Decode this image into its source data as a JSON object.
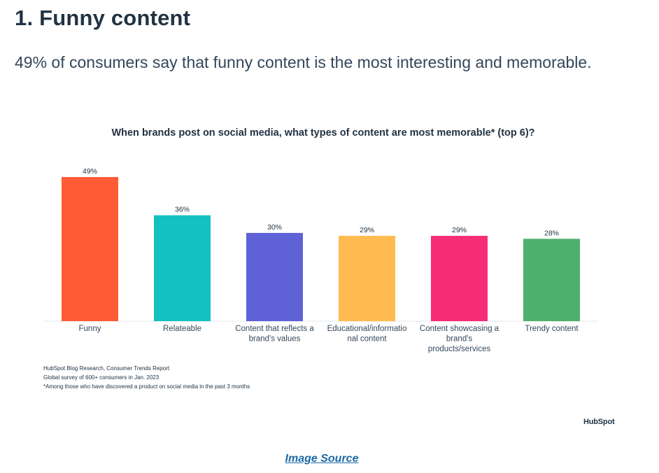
{
  "article": {
    "heading": "1. Funny content",
    "intro": "49% of consumers say that funny content is the most interesting and memorable."
  },
  "chart_data": {
    "type": "bar",
    "title": "When brands post on social media, what types of content are most memorable* (top 6)?",
    "categories": [
      [
        "Funny"
      ],
      [
        "Relateable"
      ],
      [
        "Content that reflects a",
        "brand's values"
      ],
      [
        "Educational/informatio",
        "nal content"
      ],
      [
        "Content showcasing a",
        "brand's",
        "products/services"
      ],
      [
        "Trendy content"
      ]
    ],
    "values": [
      49,
      36,
      30,
      29,
      29,
      28
    ],
    "value_labels": [
      "49%",
      "36%",
      "30%",
      "29%",
      "29%",
      "28%"
    ],
    "colors": [
      "#ff5c35",
      "#13c1c1",
      "#5e62d6",
      "#ffbb4f",
      "#f72d75",
      "#4fb06d"
    ],
    "ylim": [
      0,
      49
    ],
    "grid": false,
    "xlabel": "",
    "ylabel": ""
  },
  "notes": {
    "line1": "HubSpot Blog Research, Consumer Trends Report",
    "line2": "Global survey of 600+ consumers in Jan. 2023",
    "line3": "*Among those who have discovered a product on social media in the past 3 months"
  },
  "brand": {
    "logo_text": "HubSpot"
  },
  "footer": {
    "source_link": "Image Source"
  }
}
